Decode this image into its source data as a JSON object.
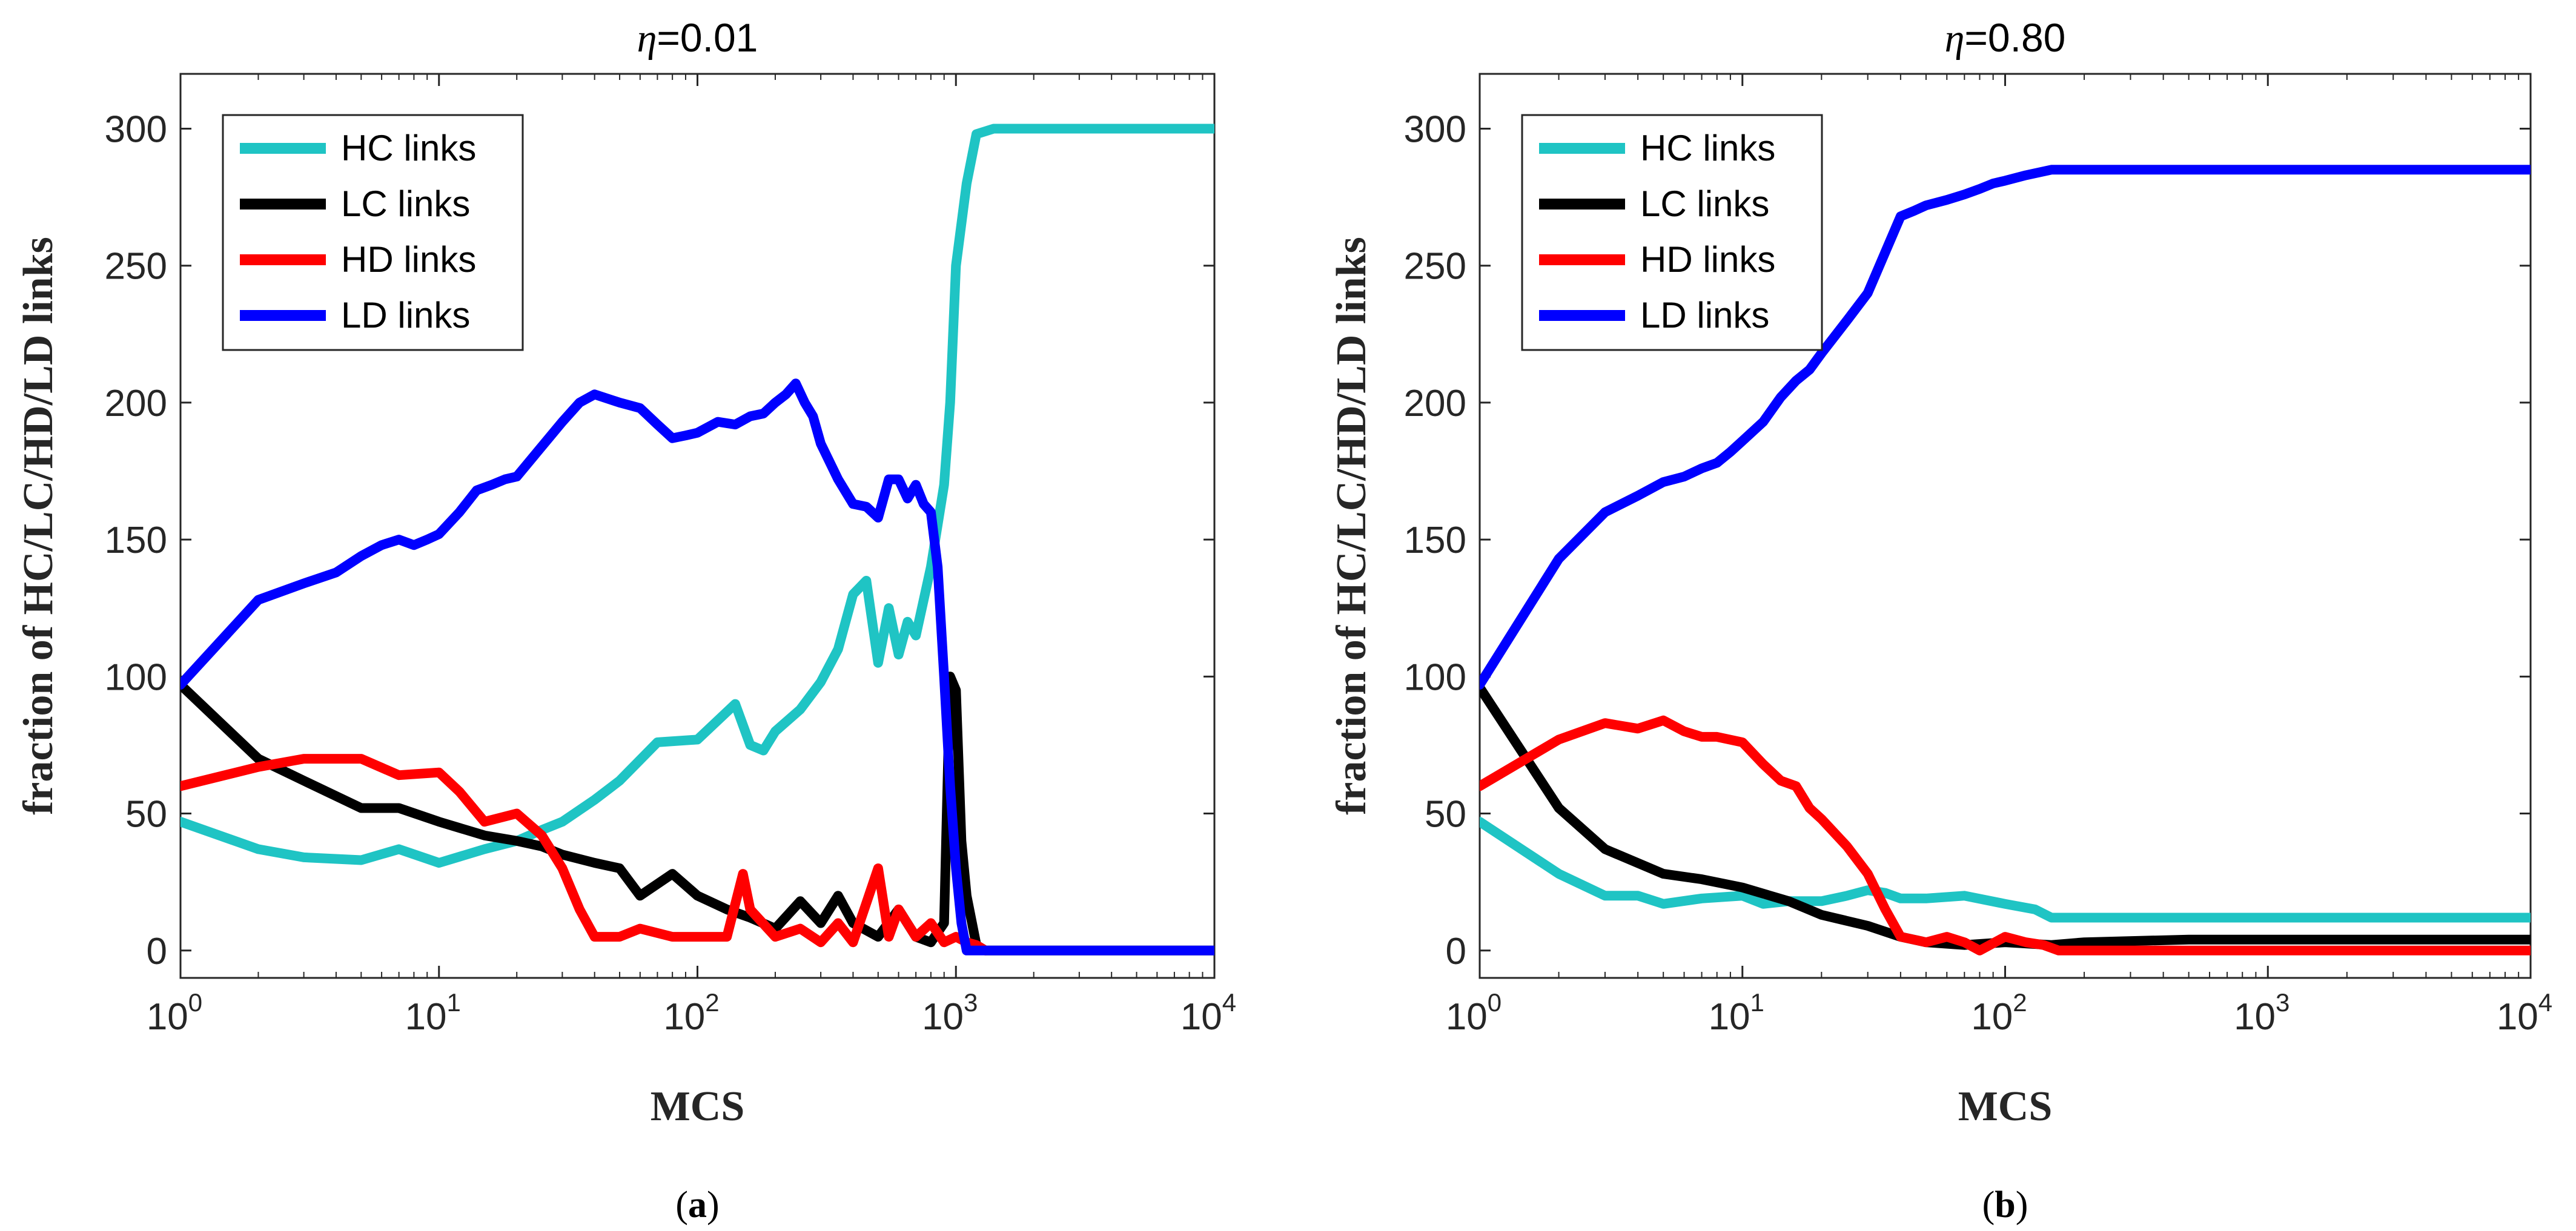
{
  "chart_data": [
    {
      "type": "line",
      "title_symbol": "η",
      "title_value": "=0.01",
      "caption_letter": "a",
      "xlabel": "MCS",
      "ylabel": "fraction of HC/LC/HD/LD links",
      "xscale": "log",
      "xlim": [
        1,
        10000
      ],
      "ylim": [
        -10,
        320
      ],
      "xticks": [
        1,
        10,
        100,
        1000,
        10000
      ],
      "yticks": [
        0,
        50,
        100,
        150,
        200,
        250,
        300
      ],
      "legend_position": "top-left",
      "series": [
        {
          "name": "HC links",
          "color": "#1fc4c4",
          "x": [
            1,
            2,
            3,
            5,
            7,
            10,
            15,
            20,
            25,
            30,
            40,
            50,
            70,
            100,
            140,
            160,
            180,
            200,
            250,
            300,
            350,
            400,
            450,
            500,
            550,
            600,
            650,
            700,
            800,
            900,
            950,
            1000,
            1100,
            1200,
            1400,
            2000,
            5000,
            10000
          ],
          "y": [
            47,
            37,
            34,
            33,
            37,
            32,
            37,
            40,
            44,
            47,
            55,
            62,
            76,
            77,
            90,
            75,
            73,
            80,
            88,
            98,
            110,
            130,
            135,
            105,
            125,
            108,
            120,
            115,
            140,
            170,
            200,
            250,
            280,
            298,
            300,
            300,
            300,
            300
          ]
        },
        {
          "name": "LC links",
          "color": "#000000",
          "x": [
            1,
            2,
            3,
            5,
            7,
            10,
            15,
            20,
            25,
            30,
            40,
            50,
            60,
            80,
            100,
            130,
            160,
            200,
            250,
            300,
            350,
            400,
            500,
            600,
            700,
            800,
            900,
            950,
            1000,
            1050,
            1100,
            1200,
            1300,
            2000,
            5000,
            10000
          ],
          "y": [
            97,
            70,
            62,
            52,
            52,
            47,
            42,
            40,
            38,
            35,
            32,
            30,
            20,
            28,
            20,
            15,
            12,
            8,
            18,
            10,
            20,
            10,
            5,
            15,
            5,
            3,
            10,
            100,
            95,
            40,
            20,
            2,
            0,
            0,
            0,
            0
          ]
        },
        {
          "name": "HD links",
          "color": "#ff0000",
          "x": [
            1,
            2,
            3,
            5,
            7,
            10,
            12,
            15,
            20,
            25,
            30,
            35,
            40,
            50,
            60,
            80,
            100,
            130,
            150,
            160,
            200,
            250,
            300,
            350,
            400,
            500,
            550,
            600,
            700,
            800,
            900,
            1000,
            1100,
            1200,
            1300
          ],
          "y": [
            60,
            67,
            70,
            70,
            64,
            65,
            58,
            47,
            50,
            42,
            30,
            15,
            5,
            5,
            8,
            5,
            5,
            5,
            28,
            15,
            5,
            8,
            3,
            10,
            3,
            30,
            5,
            15,
            5,
            10,
            3,
            5,
            3,
            2,
            0
          ]
        },
        {
          "name": "LD links",
          "color": "#0000ff",
          "x": [
            1,
            2,
            3,
            4,
            5,
            6,
            7,
            8,
            9,
            10,
            12,
            14,
            16,
            18,
            20,
            25,
            30,
            35,
            40,
            50,
            60,
            70,
            80,
            90,
            100,
            120,
            140,
            160,
            180,
            200,
            220,
            240,
            260,
            280,
            300,
            350,
            400,
            450,
            500,
            550,
            600,
            650,
            700,
            750,
            800,
            850,
            900,
            950,
            1000,
            1050,
            1100,
            1200,
            1300,
            1500,
            2000,
            5000,
            10000
          ],
          "y": [
            97,
            128,
            134,
            138,
            144,
            148,
            150,
            148,
            150,
            152,
            160,
            168,
            170,
            172,
            173,
            184,
            193,
            200,
            203,
            200,
            198,
            192,
            187,
            188,
            189,
            193,
            192,
            195,
            196,
            200,
            203,
            207,
            200,
            195,
            185,
            172,
            163,
            162,
            158,
            172,
            172,
            165,
            170,
            163,
            160,
            140,
            100,
            60,
            30,
            10,
            0,
            0,
            0,
            0,
            0,
            0,
            0
          ]
        }
      ]
    },
    {
      "type": "line",
      "title_symbol": "η",
      "title_value": "=0.80",
      "caption_letter": "b",
      "xlabel": "MCS",
      "ylabel": "fraction of HC/LC/HD/LD links",
      "xscale": "log",
      "xlim": [
        1,
        10000
      ],
      "ylim": [
        -10,
        320
      ],
      "xticks": [
        1,
        10,
        100,
        1000,
        10000
      ],
      "yticks": [
        0,
        50,
        100,
        150,
        200,
        250,
        300
      ],
      "legend_position": "top-left",
      "series": [
        {
          "name": "HC links",
          "color": "#1fc4c4",
          "x": [
            1,
            2,
            3,
            4,
            5,
            7,
            10,
            12,
            15,
            20,
            25,
            30,
            35,
            40,
            50,
            70,
            100,
            130,
            150,
            200,
            500,
            1000,
            10000
          ],
          "y": [
            47,
            28,
            20,
            20,
            17,
            19,
            20,
            17,
            18,
            18,
            20,
            22,
            21,
            19,
            19,
            20,
            17,
            15,
            12,
            12,
            12,
            12,
            12
          ]
        },
        {
          "name": "LC links",
          "color": "#000000",
          "x": [
            1,
            2,
            3,
            5,
            7,
            10,
            15,
            20,
            30,
            40,
            50,
            70,
            100,
            150,
            200,
            500,
            1000,
            2000,
            5000,
            10000
          ],
          "y": [
            96,
            52,
            37,
            28,
            26,
            23,
            18,
            13,
            9,
            5,
            3,
            2,
            3,
            2,
            3,
            4,
            4,
            4,
            4,
            4
          ]
        },
        {
          "name": "HD links",
          "color": "#ff0000",
          "x": [
            1,
            2,
            3,
            4,
            5,
            6,
            7,
            8,
            10,
            12,
            14,
            16,
            18,
            20,
            25,
            30,
            35,
            40,
            50,
            60,
            70,
            80,
            100,
            120,
            140,
            160,
            200,
            500,
            1000,
            10000
          ],
          "y": [
            60,
            77,
            83,
            81,
            84,
            80,
            78,
            78,
            76,
            68,
            62,
            60,
            52,
            48,
            38,
            28,
            15,
            5,
            3,
            5,
            3,
            0,
            5,
            3,
            2,
            0,
            0,
            0,
            0,
            0
          ]
        },
        {
          "name": "LD links",
          "color": "#0000ff",
          "x": [
            1,
            2,
            3,
            4,
            5,
            6,
            7,
            8,
            9,
            10,
            12,
            14,
            16,
            18,
            20,
            25,
            30,
            35,
            40,
            45,
            50,
            60,
            70,
            80,
            90,
            100,
            120,
            150,
            200,
            300,
            500,
            1000,
            2000,
            5000,
            10000
          ],
          "y": [
            97,
            143,
            160,
            166,
            171,
            173,
            176,
            178,
            182,
            186,
            193,
            202,
            208,
            212,
            218,
            230,
            240,
            255,
            268,
            270,
            272,
            274,
            276,
            278,
            280,
            281,
            283,
            285,
            285,
            285,
            285,
            285,
            285,
            285,
            285
          ]
        }
      ]
    }
  ]
}
